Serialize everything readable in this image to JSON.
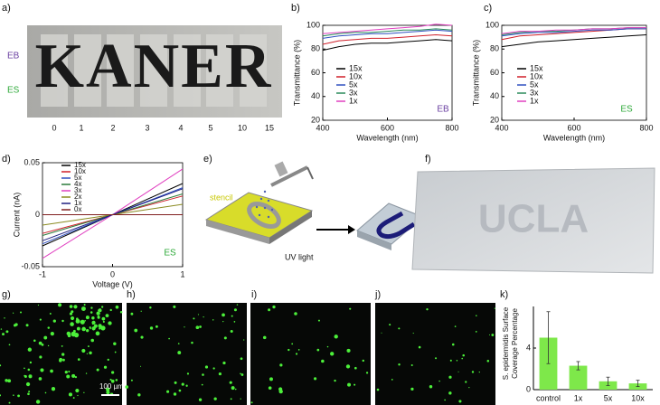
{
  "panel_labels": [
    "a)",
    "b)",
    "c)",
    "d)",
    "e)",
    "f)",
    "g)",
    "h)",
    "i)",
    "j)",
    "k)"
  ],
  "photo_a": {
    "logo": "KANER",
    "rows": [
      "EB",
      "ES"
    ],
    "samples": [
      "0",
      "1",
      "2",
      "3",
      "4",
      "5",
      "10",
      "15"
    ]
  },
  "diagram_e": {
    "stencil": "stencil",
    "process": "UV light"
  },
  "microscopy": {
    "scale_bar": "100 µm"
  },
  "chart_data": [
    {
      "type": "line",
      "xlabel": "Wavelength (nm)",
      "ylabel": "Transmittance (%)",
      "annotation": "EB",
      "annotation_color": "#6a3fa0",
      "x": [
        400,
        450,
        500,
        550,
        600,
        650,
        700,
        750,
        800
      ],
      "xlim": [
        400,
        800
      ],
      "xticks": [
        400,
        600,
        800
      ],
      "ylim": [
        20,
        100
      ],
      "yticks": [
        20,
        40,
        60,
        80,
        100
      ],
      "series": [
        {
          "name": "15x",
          "color": "#000000",
          "values": [
            79,
            82,
            84,
            85,
            85,
            86,
            87,
            88,
            87
          ]
        },
        {
          "name": "10x",
          "color": "#d0202a",
          "values": [
            84,
            87,
            88,
            89,
            89,
            90,
            91,
            92,
            91
          ]
        },
        {
          "name": "5x",
          "color": "#3050c0",
          "values": [
            89,
            91,
            92,
            93,
            93,
            94,
            95,
            96,
            95
          ]
        },
        {
          "name": "3x",
          "color": "#2a8a5a",
          "values": [
            91,
            93,
            94,
            94,
            95,
            96,
            96,
            97,
            96
          ]
        },
        {
          "name": "1x",
          "color": "#e040c0",
          "values": [
            93,
            94,
            95,
            96,
            97,
            98,
            99,
            101,
            100
          ]
        }
      ]
    },
    {
      "type": "line",
      "xlabel": "Wavelength (nm)",
      "ylabel": "Transmittance (%)",
      "annotation": "ES",
      "annotation_color": "#2faa3a",
      "x": [
        400,
        450,
        500,
        550,
        600,
        650,
        700,
        750,
        800
      ],
      "xlim": [
        400,
        800
      ],
      "xticks": [
        400,
        600,
        800
      ],
      "ylim": [
        20,
        100
      ],
      "yticks": [
        20,
        40,
        60,
        80,
        100
      ],
      "series": [
        {
          "name": "15x",
          "color": "#000000",
          "values": [
            82,
            84,
            86,
            87,
            88,
            89,
            90,
            91,
            92
          ]
        },
        {
          "name": "10x",
          "color": "#d0202a",
          "values": [
            88,
            91,
            92,
            93,
            94,
            95,
            96,
            97,
            97
          ]
        },
        {
          "name": "5x",
          "color": "#3050c0",
          "values": [
            91,
            93,
            94,
            94,
            95,
            96,
            96,
            97,
            97
          ]
        },
        {
          "name": "3x",
          "color": "#2a8a5a",
          "values": [
            92,
            94,
            95,
            95,
            96,
            97,
            97,
            98,
            98
          ]
        },
        {
          "name": "1x",
          "color": "#e040c0",
          "values": [
            93,
            95,
            95,
            96,
            96,
            97,
            97,
            98,
            98
          ]
        }
      ]
    },
    {
      "type": "line",
      "xlabel": "Voltage (V)",
      "ylabel": "Current (nA)",
      "annotation": "ES",
      "annotation_color": "#2faa3a",
      "x": [
        -1,
        0,
        1
      ],
      "xlim": [
        -1,
        1
      ],
      "xticks": [
        -1,
        0,
        1
      ],
      "ylim": [
        -0.05,
        0.05
      ],
      "yticks": [
        -0.05,
        0,
        0.05
      ],
      "series": [
        {
          "name": "15x",
          "color": "#000000",
          "values": [
            -0.03,
            0,
            0.03
          ]
        },
        {
          "name": "10x",
          "color": "#d0202a",
          "values": [
            -0.018,
            0,
            0.018
          ]
        },
        {
          "name": "5x",
          "color": "#3050c0",
          "values": [
            -0.028,
            0,
            0.026
          ]
        },
        {
          "name": "4x",
          "color": "#2a7a3a",
          "values": [
            -0.02,
            0,
            0.02
          ]
        },
        {
          "name": "3x",
          "color": "#e040c0",
          "values": [
            -0.042,
            0,
            0.044
          ]
        },
        {
          "name": "2x",
          "color": "#8a8a20",
          "values": [
            -0.01,
            0,
            0.01
          ]
        },
        {
          "name": "1x",
          "color": "#202080",
          "values": [
            -0.025,
            0,
            0.025
          ]
        },
        {
          "name": "0x",
          "color": "#802020",
          "values": [
            0,
            0,
            0
          ]
        }
      ]
    },
    {
      "type": "bar",
      "ylabel": [
        "S. epidermidis Surface",
        "Coverage Percentage"
      ],
      "categories": [
        "control",
        "1x",
        "5x",
        "10x"
      ],
      "values": [
        5,
        2.3,
        0.8,
        0.6
      ],
      "errors": [
        2.5,
        0.4,
        0.4,
        0.3
      ],
      "color": "#7ee84a",
      "ylim": [
        0,
        8
      ],
      "yticks": [
        0,
        4
      ]
    }
  ]
}
